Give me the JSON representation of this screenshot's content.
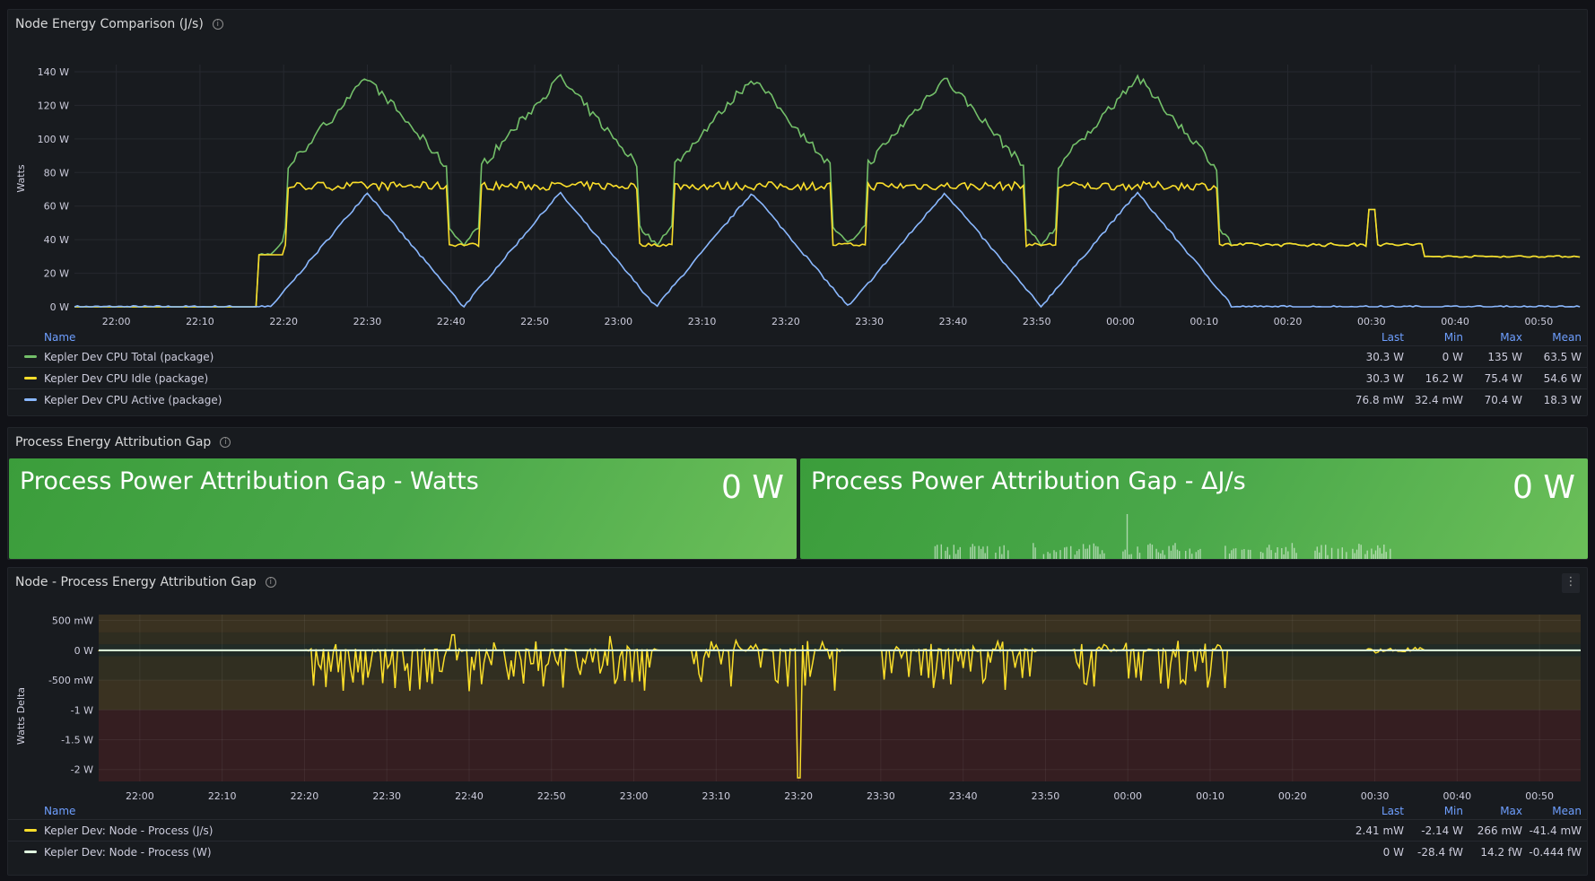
{
  "panels": {
    "energy": {
      "title": "Node Energy Comparison (J/s)",
      "ylabel": "Watts",
      "yticks": [
        "0 W",
        "20 W",
        "40 W",
        "60 W",
        "80 W",
        "100 W",
        "120 W",
        "140 W"
      ],
      "legend": {
        "headers": {
          "name": "Name",
          "last": "Last",
          "min": "Min",
          "max": "Max",
          "mean": "Mean"
        },
        "rows": [
          {
            "name": "Kepler Dev CPU Total (package)",
            "color": "#73bf69",
            "last": "30.3 W",
            "min": "0 W",
            "max": "135 W",
            "mean": "63.5 W"
          },
          {
            "name": "Kepler Dev CPU Idle (package)",
            "color": "#fade2a",
            "last": "30.3 W",
            "min": "16.2 W",
            "max": "75.4 W",
            "mean": "54.6 W"
          },
          {
            "name": "Kepler Dev CPU Active (package)",
            "color": "#8ab8ff",
            "last": "76.8 mW",
            "min": "32.4 mW",
            "max": "70.4 W",
            "mean": "18.3 W"
          }
        ]
      }
    },
    "attribution": {
      "title": "Process Energy Attribution Gap",
      "stat_watts": {
        "title": "Process Power Attribution Gap - Watts",
        "value": "0 W"
      },
      "stat_delta": {
        "title": "Process Power Attribution Gap - ΔJ/s",
        "value": "0 W"
      }
    },
    "gap": {
      "title": "Node - Process Energy Attribution Gap",
      "ylabel": "Watts Delta",
      "yticks": [
        "-2 W",
        "-1.5 W",
        "-1 W",
        "-500 mW",
        "0 W",
        "500 mW"
      ],
      "legend": {
        "headers": {
          "name": "Name",
          "last": "Last",
          "min": "Min",
          "max": "Max",
          "mean": "Mean"
        },
        "rows": [
          {
            "name": "Kepler Dev: Node - Process (J/s)",
            "color": "#fade2a",
            "last": "2.41 mW",
            "min": "-2.14 W",
            "max": "266 mW",
            "mean": "-41.4 mW"
          },
          {
            "name": "Kepler Dev: Node - Process (W)",
            "color": "#e0f8e0",
            "last": "0 W",
            "min": "-28.4 fW",
            "max": "14.2 fW",
            "mean": "-0.444 fW"
          }
        ]
      }
    }
  },
  "xticks": [
    "22:00",
    "22:10",
    "22:20",
    "22:30",
    "22:40",
    "22:50",
    "23:00",
    "23:10",
    "23:20",
    "23:30",
    "23:40",
    "23:50",
    "00:00",
    "00:10",
    "00:20",
    "00:30",
    "00:40",
    "00:50"
  ],
  "chart_data": [
    {
      "type": "line",
      "ylim": [
        0,
        140
      ],
      "x_range": [
        "21:55",
        "00:55"
      ],
      "series": [
        {
          "name": "Kepler Dev CPU Total (package)",
          "peaks_at": [
            "22:30",
            "22:53",
            "23:16",
            "23:39",
            "00:02"
          ],
          "peak_value": 130,
          "base_value": 30
        },
        {
          "name": "Kepler Dev CPU Idle (package)",
          "plateau_value": 72,
          "low_value": 37,
          "tail_value": 30
        },
        {
          "name": "Kepler Dev CPU Active (package)",
          "peaks_at": [
            "22:30",
            "22:53",
            "23:16",
            "23:39",
            "00:02"
          ],
          "peak_value": 68,
          "base_value": 0
        }
      ]
    },
    {
      "type": "line",
      "ylim": [
        -2.2,
        0.6
      ],
      "series": [
        {
          "name": "Kepler Dev: Node - Process (J/s)",
          "min": -2.14,
          "max": 0.266
        },
        {
          "name": "Kepler Dev: Node - Process (W)",
          "value": 0
        }
      ]
    }
  ]
}
